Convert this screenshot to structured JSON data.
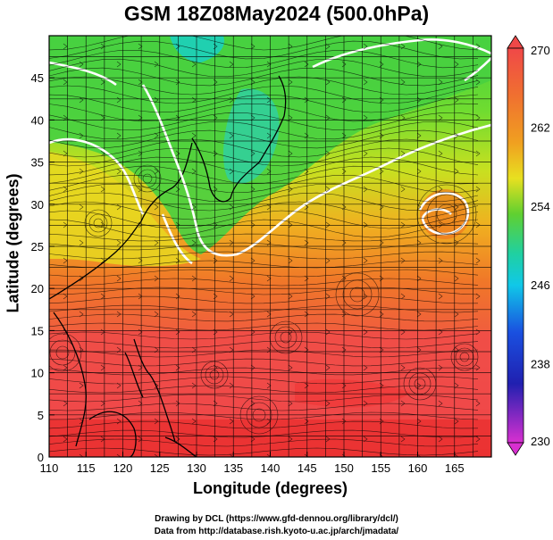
{
  "title": "GSM 18Z08May2024 (500.0hPa)",
  "axes": {
    "xlabel": "Longitude (degrees)",
    "ylabel": "Latitude  (degrees)",
    "x_ticks": [
      "110",
      "115",
      "120",
      "125",
      "130",
      "135",
      "140",
      "145",
      "150",
      "155",
      "160",
      "165"
    ],
    "y_ticks": [
      "0",
      "5",
      "10",
      "15",
      "20",
      "25",
      "30",
      "35",
      "40",
      "45"
    ],
    "x_range": [
      110,
      170
    ],
    "y_range": [
      0,
      50
    ]
  },
  "colorbar": {
    "labels": [
      "270",
      "262",
      "254",
      "246",
      "238",
      "230"
    ],
    "range": [
      230,
      270
    ],
    "colors": {
      "cold": "#d32fd0",
      "blue": "#2020c0",
      "cyan": "#00d4d0",
      "green": "#30d030",
      "yellow": "#f0e020",
      "orange": "#f08020",
      "red": "#f05050"
    }
  },
  "credits": {
    "line1": "Drawing by DCL (https://www.gfd-dennou.org/library/dcl/)",
    "line2": "Data from http://database.rish.kyoto-u.ac.jp/arch/jmadata/"
  }
}
